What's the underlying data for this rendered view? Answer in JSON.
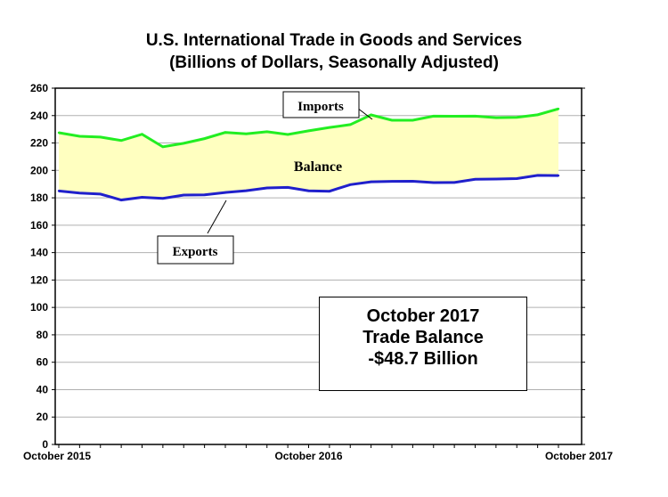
{
  "chart_data": {
    "type": "area",
    "title": "U.S. International Trade in Goods and Services",
    "subtitle": "(Billions of Dollars, Seasonally Adjusted)",
    "x": [
      "Oct 2015",
      "Nov 2015",
      "Dec 2015",
      "Jan 2016",
      "Feb 2016",
      "Mar 2016",
      "Apr 2016",
      "May 2016",
      "Jun 2016",
      "Jul 2016",
      "Aug 2016",
      "Sep 2016",
      "Oct 2016",
      "Nov 2016",
      "Dec 2016",
      "Jan 2017",
      "Feb 2017",
      "Mar 2017",
      "Apr 2017",
      "May 2017",
      "Jun 2017",
      "Jul 2017",
      "Aug 2017",
      "Sep 2017",
      "Oct 2017"
    ],
    "x_tick_labels": [
      "October 2015",
      "October 2016",
      "October 2017"
    ],
    "ylim": [
      0,
      260
    ],
    "yticks": [
      0,
      20,
      40,
      60,
      80,
      100,
      120,
      140,
      160,
      180,
      200,
      220,
      240,
      260
    ],
    "grid": true,
    "series": [
      {
        "name": "Imports",
        "color": "#22ee22",
        "values": [
          227.5,
          224.9,
          224.3,
          221.8,
          226.4,
          217.2,
          219.8,
          223.2,
          227.7,
          226.7,
          228.2,
          226.2,
          228.9,
          231.3,
          233.4,
          240.5,
          236.6,
          236.6,
          239.6,
          239.5,
          239.6,
          238.5,
          238.7,
          240.6,
          244.9
        ]
      },
      {
        "name": "Exports",
        "color": "#2020cc",
        "values": [
          185.0,
          183.5,
          182.7,
          178.4,
          180.4,
          179.6,
          182.0,
          182.2,
          183.9,
          185.2,
          187.2,
          187.6,
          185.1,
          184.8,
          189.6,
          191.7,
          192.0,
          192.1,
          191.1,
          191.2,
          193.5,
          193.7,
          194.0,
          196.4,
          196.2
        ]
      }
    ],
    "fill_color": "#ffffc0",
    "annotations": {
      "imports": "Imports",
      "balance": "Balance",
      "exports": "Exports"
    }
  },
  "info_box": {
    "line1": "October 2017",
    "line2": "Trade Balance",
    "line3": "-$48.7 Billion"
  }
}
